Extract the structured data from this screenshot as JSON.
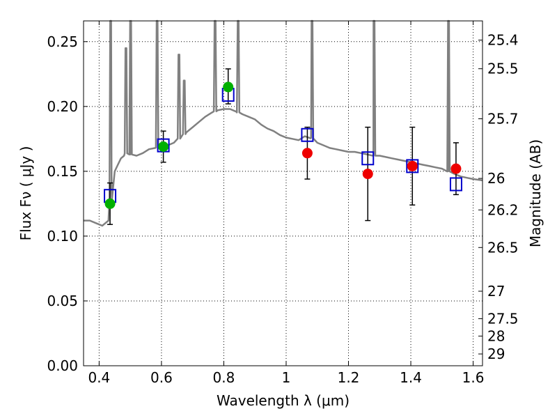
{
  "chart_data": {
    "type": "scatter",
    "xlabel": "Wavelength  λ (μm)",
    "ylabel": "Flux  Fν  ( μJy )",
    "y2label": "Magnitude (AB)",
    "xlim": [
      0.35,
      1.63
    ],
    "ylim": [
      0.0,
      0.266
    ],
    "grid": true,
    "x_ticks": [
      {
        "value": 0.4,
        "label": "0.4"
      },
      {
        "value": 0.6,
        "label": "0.6"
      },
      {
        "value": 0.8,
        "label": "0.8"
      },
      {
        "value": 1.0,
        "label": "1"
      },
      {
        "value": 1.2,
        "label": "1.2"
      },
      {
        "value": 1.4,
        "label": "1.4"
      },
      {
        "value": 1.6,
        "label": "1.6"
      }
    ],
    "y_ticks": [
      {
        "value": 0.0,
        "label": "0.00"
      },
      {
        "value": 0.05,
        "label": "0.05"
      },
      {
        "value": 0.1,
        "label": "0.10"
      },
      {
        "value": 0.15,
        "label": "0.15"
      },
      {
        "value": 0.2,
        "label": "0.20"
      },
      {
        "value": 0.25,
        "label": "0.25"
      }
    ],
    "mag_ticks": [
      {
        "label": "25.4",
        "flux": 0.2512
      },
      {
        "label": "25.5",
        "flux": 0.2291
      },
      {
        "label": "25.7",
        "flux": 0.1905
      },
      {
        "label": "26",
        "flux": 0.1445
      },
      {
        "label": "26.2",
        "flux": 0.1202
      },
      {
        "label": "26.5",
        "flux": 0.0912
      },
      {
        "label": "27",
        "flux": 0.0575
      },
      {
        "label": "27.5",
        "flux": 0.0363
      },
      {
        "label": "28",
        "flux": 0.0229
      },
      {
        "label": "29",
        "flux": 0.0091
      }
    ],
    "colors": {
      "spectrum": "#808080",
      "model_squares": "#0000cc",
      "observed_green": "#00b000",
      "observed_red": "#ee0000",
      "errorbars": "#000000",
      "grid": "#000000"
    },
    "series": [
      {
        "marker": "line",
        "points": [
          [
            0.35,
            0.112
          ],
          [
            0.37,
            0.112
          ],
          [
            0.39,
            0.11
          ],
          [
            0.41,
            0.108
          ],
          [
            0.42,
            0.11
          ],
          [
            0.43,
            0.112
          ],
          [
            0.44,
            0.135
          ],
          [
            0.45,
            0.15
          ],
          [
            0.46,
            0.155
          ],
          [
            0.47,
            0.16
          ],
          [
            0.48,
            0.162
          ],
          [
            0.49,
            0.165
          ],
          [
            0.5,
            0.163
          ],
          [
            0.52,
            0.162
          ],
          [
            0.54,
            0.164
          ],
          [
            0.56,
            0.167
          ],
          [
            0.58,
            0.168
          ],
          [
            0.6,
            0.169
          ],
          [
            0.62,
            0.17
          ],
          [
            0.64,
            0.172
          ],
          [
            0.66,
            0.176
          ],
          [
            0.68,
            0.18
          ],
          [
            0.7,
            0.184
          ],
          [
            0.72,
            0.188
          ],
          [
            0.74,
            0.192
          ],
          [
            0.76,
            0.195
          ],
          [
            0.78,
            0.197
          ],
          [
            0.8,
            0.198
          ],
          [
            0.82,
            0.198
          ],
          [
            0.84,
            0.196
          ],
          [
            0.86,
            0.194
          ],
          [
            0.88,
            0.192
          ],
          [
            0.9,
            0.19
          ],
          [
            0.92,
            0.186
          ],
          [
            0.94,
            0.183
          ],
          [
            0.96,
            0.181
          ],
          [
            0.98,
            0.178
          ],
          [
            1.0,
            0.176
          ],
          [
            1.02,
            0.175
          ],
          [
            1.04,
            0.174
          ],
          [
            1.06,
            0.177
          ],
          [
            1.08,
            0.176
          ],
          [
            1.1,
            0.172
          ],
          [
            1.12,
            0.17
          ],
          [
            1.14,
            0.168
          ],
          [
            1.16,
            0.167
          ],
          [
            1.18,
            0.166
          ],
          [
            1.2,
            0.165
          ],
          [
            1.22,
            0.165
          ],
          [
            1.24,
            0.164
          ],
          [
            1.26,
            0.163
          ],
          [
            1.28,
            0.162
          ],
          [
            1.3,
            0.162
          ],
          [
            1.32,
            0.161
          ],
          [
            1.34,
            0.16
          ],
          [
            1.36,
            0.159
          ],
          [
            1.38,
            0.158
          ],
          [
            1.4,
            0.157
          ],
          [
            1.42,
            0.156
          ],
          [
            1.44,
            0.155
          ],
          [
            1.46,
            0.154
          ],
          [
            1.48,
            0.153
          ],
          [
            1.5,
            0.152
          ],
          [
            1.52,
            0.15
          ],
          [
            1.54,
            0.148
          ],
          [
            1.56,
            0.146
          ],
          [
            1.58,
            0.145
          ],
          [
            1.6,
            0.144
          ],
          [
            1.63,
            0.143
          ]
        ],
        "peaks": [
          {
            "x": 0.437,
            "y": 0.266
          },
          {
            "x": 0.486,
            "y": 0.245
          },
          {
            "x": 0.501,
            "y": 0.266
          },
          {
            "x": 0.586,
            "y": 0.266
          },
          {
            "x": 0.656,
            "y": 0.24
          },
          {
            "x": 0.673,
            "y": 0.22
          },
          {
            "x": 0.772,
            "y": 0.266
          },
          {
            "x": 0.846,
            "y": 0.266
          },
          {
            "x": 1.083,
            "y": 0.266
          },
          {
            "x": 1.282,
            "y": 0.266
          },
          {
            "x": 1.521,
            "y": 0.266
          }
        ]
      },
      {
        "marker": "open-square",
        "points": [
          {
            "x": 0.435,
            "y": 0.131
          },
          {
            "x": 0.606,
            "y": 0.17
          },
          {
            "x": 0.814,
            "y": 0.209
          },
          {
            "x": 1.068,
            "y": 0.178
          },
          {
            "x": 1.262,
            "y": 0.16
          },
          {
            "x": 1.405,
            "y": 0.154
          },
          {
            "x": 1.545,
            "y": 0.14
          }
        ]
      },
      {
        "marker": "filled-circle",
        "color": "green",
        "points": [
          {
            "x": 0.435,
            "y": 0.125,
            "yerr_low": 0.016,
            "yerr_high": 0.016
          },
          {
            "x": 0.606,
            "y": 0.169,
            "yerr_low": 0.012,
            "yerr_high": 0.012
          },
          {
            "x": 0.814,
            "y": 0.215,
            "yerr_low": 0.013,
            "yerr_high": 0.014
          }
        ]
      },
      {
        "marker": "filled-circle",
        "color": "red",
        "points": [
          {
            "x": 1.068,
            "y": 0.164,
            "yerr_low": 0.02,
            "yerr_high": 0.02
          },
          {
            "x": 1.262,
            "y": 0.148,
            "yerr_low": 0.036,
            "yerr_high": 0.036
          },
          {
            "x": 1.405,
            "y": 0.154,
            "yerr_low": 0.03,
            "yerr_high": 0.03
          },
          {
            "x": 1.545,
            "y": 0.152,
            "yerr_low": 0.02,
            "yerr_high": 0.02
          }
        ]
      }
    ]
  }
}
